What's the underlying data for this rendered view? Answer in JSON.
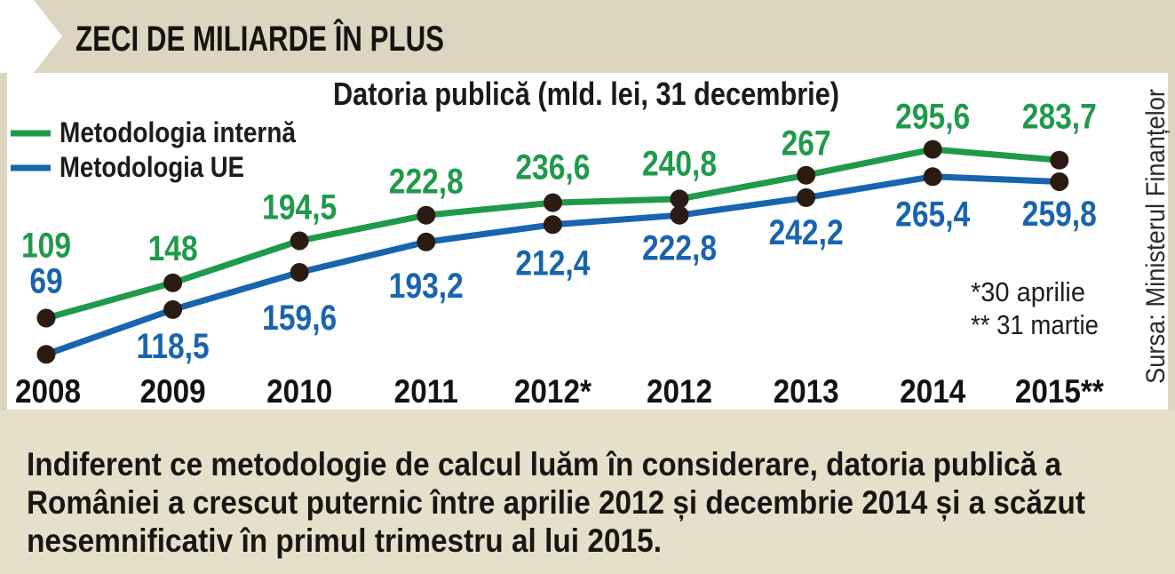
{
  "header": {
    "title": "ZECI DE MILIARDE ÎN PLUS"
  },
  "chart_data": {
    "type": "line",
    "title": "Datoria publică (mld. lei, 31 decembrie)",
    "categories": [
      "2008",
      "2009",
      "2010",
      "2011",
      "2012*",
      "2012",
      "2013",
      "2014",
      "2015**"
    ],
    "series": [
      {
        "name": "Metodologia internă",
        "color": "#1f9a4b",
        "values": [
          109,
          148,
          194.5,
          222.8,
          236.6,
          240.8,
          267,
          295.6,
          283.7
        ]
      },
      {
        "name": "Metodologia UE",
        "color": "#1864ae",
        "values": [
          69,
          118.5,
          159.6,
          193.2,
          212.4,
          222.8,
          242.2,
          265.4,
          259.8
        ]
      }
    ],
    "data_labels": true,
    "grid": false,
    "legend": "top-left",
    "marker_color": "#2b1b12",
    "notes": [
      "*30 aprilie",
      "** 31 martie"
    ],
    "source": "Sursa: Ministerul Finanțelor"
  },
  "caption": {
    "lines": [
      "Indiferent ce metodologie de calcul luăm în considerare, datoria publică a",
      "României a crescut puternic între aprilie 2012 și decembrie 2014 și a scăzut",
      "nesemnificativ în primul trimestru al lui 2015."
    ]
  }
}
